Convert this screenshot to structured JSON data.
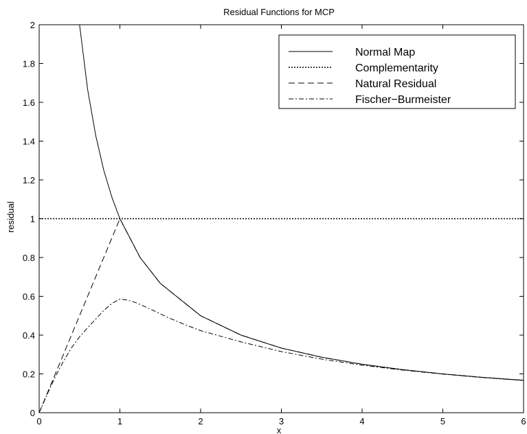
{
  "chart_data": {
    "type": "line",
    "title": "Residual Functions for MCP",
    "xlabel": "x",
    "ylabel": "residual",
    "xlim": [
      0,
      6
    ],
    "ylim": [
      0,
      2
    ],
    "xticks": [
      0,
      1,
      2,
      3,
      4,
      5,
      6
    ],
    "yticks": [
      0,
      0.2,
      0.4,
      0.6,
      0.8,
      1,
      1.2,
      1.4,
      1.6,
      1.8,
      2
    ],
    "grid": false,
    "legend_position": "top-right",
    "series": [
      {
        "name": "Normal Map",
        "style": "solid",
        "color": "#000000",
        "x": [
          0.5,
          0.6,
          0.7,
          0.8,
          0.9,
          1.0,
          1.25,
          1.5,
          2.0,
          2.5,
          3.0,
          3.5,
          4.0,
          4.5,
          5.0,
          5.5,
          6.0
        ],
        "y": [
          2.0,
          1.667,
          1.429,
          1.25,
          1.111,
          1.0,
          0.8,
          0.667,
          0.5,
          0.4,
          0.333,
          0.286,
          0.25,
          0.222,
          0.2,
          0.182,
          0.167
        ]
      },
      {
        "name": "Complementarity",
        "style": "dotted",
        "color": "#000000",
        "x": [
          0,
          6
        ],
        "y": [
          1,
          1
        ]
      },
      {
        "name": "Natural Residual",
        "style": "dashed",
        "color": "#000000",
        "x": [
          0,
          1.0,
          1.25,
          1.5,
          2.0,
          2.5,
          3.0,
          3.5,
          4.0,
          4.5,
          5.0,
          5.5,
          6.0
        ],
        "y": [
          0,
          1.0,
          0.8,
          0.667,
          0.5,
          0.4,
          0.333,
          0.286,
          0.25,
          0.222,
          0.2,
          0.182,
          0.167
        ]
      },
      {
        "name": "Fischer−Burmeister",
        "style": "dashdot",
        "color": "#000000",
        "x": [
          0,
          0.1,
          0.2,
          0.3,
          0.4,
          0.5,
          0.6,
          0.7,
          0.8,
          0.9,
          1.0,
          1.1,
          1.2,
          1.4,
          1.6,
          1.8,
          2.0,
          2.5,
          3.0,
          3.5,
          4.0,
          4.5,
          5.0,
          5.5,
          6.0
        ],
        "y": [
          0,
          0.096,
          0.186,
          0.265,
          0.334,
          0.391,
          0.438,
          0.483,
          0.527,
          0.563,
          0.586,
          0.58,
          0.567,
          0.53,
          0.49,
          0.455,
          0.423,
          0.365,
          0.315,
          0.276,
          0.245,
          0.22,
          0.199,
          0.181,
          0.166
        ]
      }
    ]
  }
}
